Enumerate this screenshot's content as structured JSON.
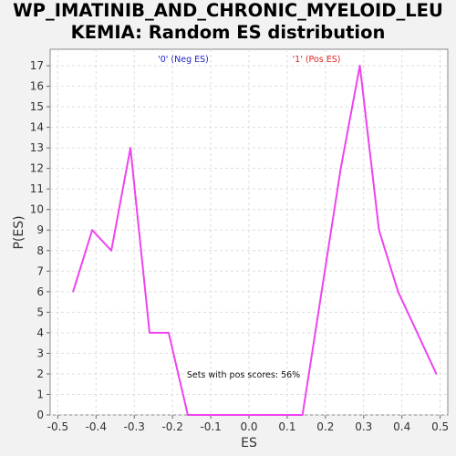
{
  "chart_data": {
    "type": "line",
    "title": "WP_IMATINIB_AND_CHRONIC_MYELOID_LEUKEMIA: Random ES distribution",
    "title_lines": [
      "WP_IMATINIB_AND_CHRONIC_MYELOID_LEU",
      "KEMIA: Random ES distribution"
    ],
    "xlabel": "ES",
    "ylabel": "P(ES)",
    "xlim": [
      -0.52,
      0.52
    ],
    "ylim": [
      0,
      17.8
    ],
    "xticks": [
      -0.5,
      -0.4,
      -0.3,
      -0.2,
      -0.1,
      0.0,
      0.1,
      0.2,
      0.3,
      0.4,
      0.5
    ],
    "xtick_labels": [
      "-0.5",
      "-0.4",
      "-0.3",
      "-0.2",
      "-0.1",
      "0.0",
      "0.1",
      "0.2",
      "0.3",
      "0.4",
      "0.5"
    ],
    "yticks": [
      0,
      1,
      2,
      3,
      4,
      5,
      6,
      7,
      8,
      9,
      10,
      11,
      12,
      13,
      14,
      15,
      16,
      17
    ],
    "grid": true,
    "series": [
      {
        "color": "#ee44ee",
        "x": [
          -0.46,
          -0.41,
          -0.36,
          -0.31,
          -0.26,
          -0.21,
          -0.16,
          -0.11,
          -0.06,
          -0.01,
          0.04,
          0.09,
          0.14,
          0.19,
          0.24,
          0.29,
          0.34,
          0.39,
          0.49
        ],
        "y": [
          6,
          9,
          8,
          13,
          4,
          4,
          0,
          0,
          0,
          0,
          0,
          0,
          0,
          6,
          12,
          17,
          9,
          6,
          2
        ]
      }
    ],
    "legend": [
      {
        "label": "'0' (Neg ES)",
        "color": "#2222cc"
      },
      {
        "label": "'1' (Pos ES)",
        "color": "#dd2222"
      }
    ],
    "annotation": "Sets with pos scores: 56%"
  }
}
